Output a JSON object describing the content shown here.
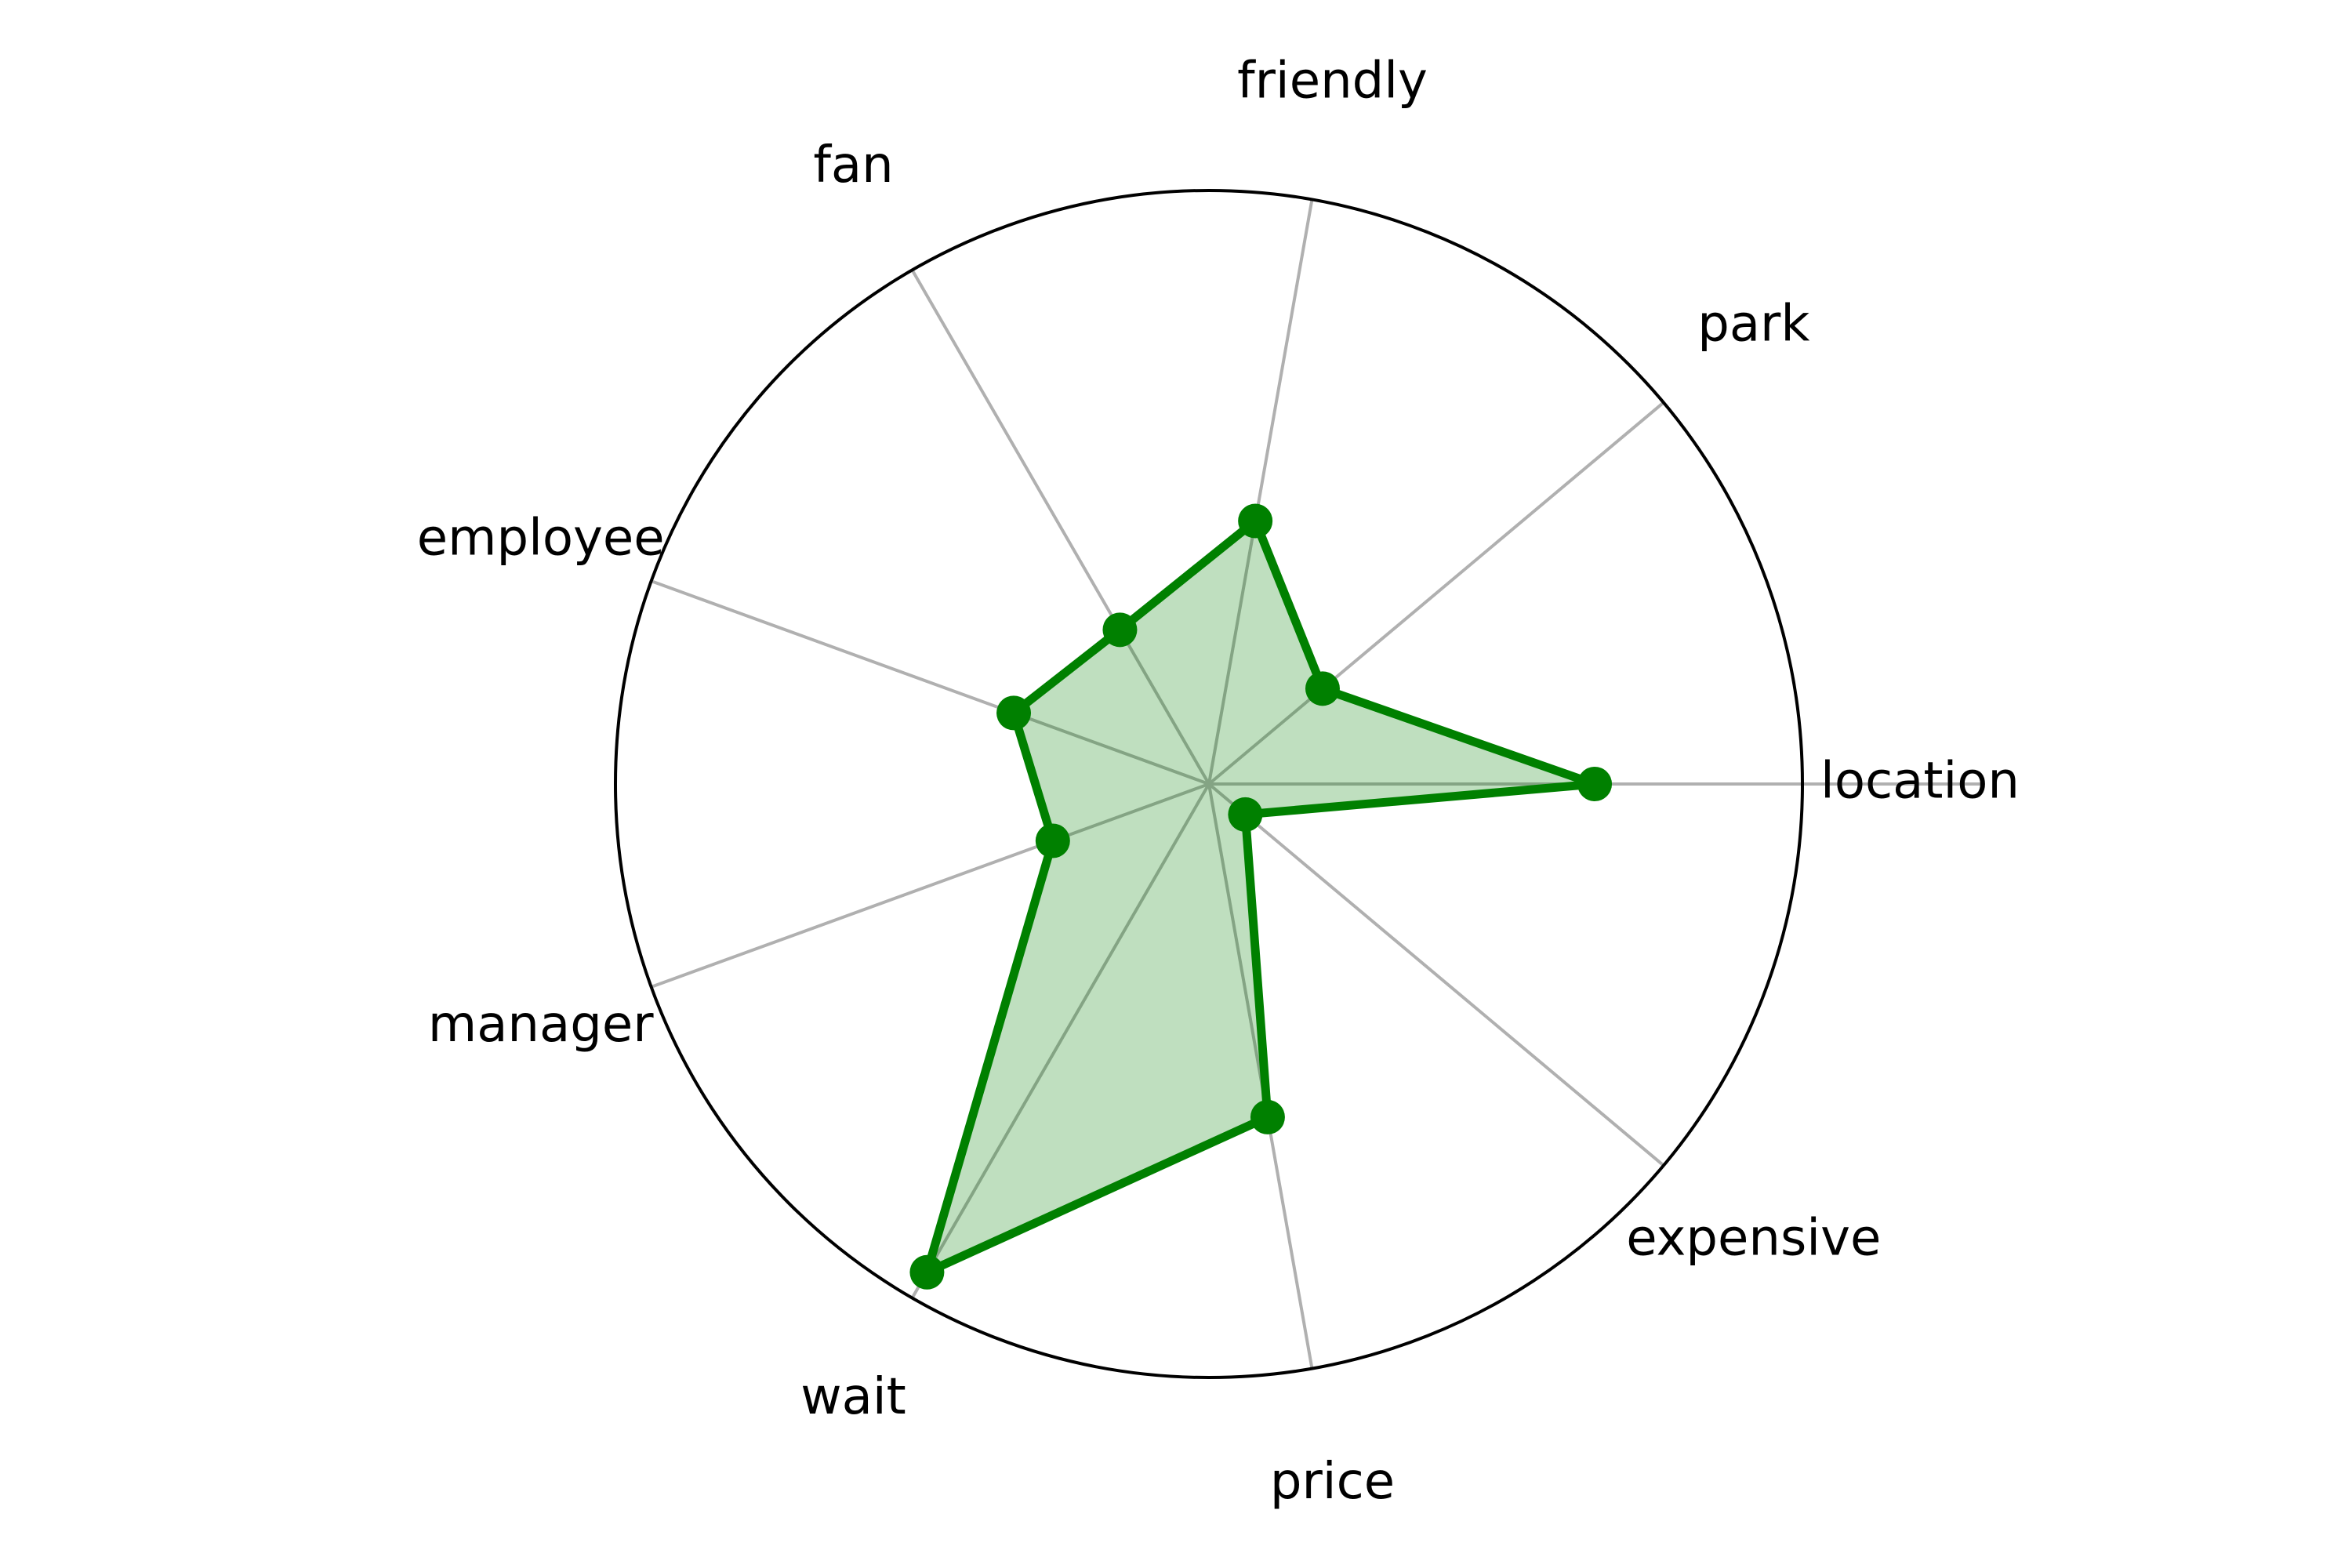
{
  "chart_data": {
    "type": "radar",
    "categories": [
      "location",
      "park",
      "friendly",
      "fan",
      "employee",
      "manager",
      "wait",
      "price",
      "expensive"
    ],
    "series": [
      {
        "values": [
          0.65,
          0.25,
          0.45,
          0.3,
          0.35,
          0.28,
          0.95,
          0.57,
          0.08
        ]
      }
    ],
    "rlim": [
      0,
      1
    ],
    "grid": true,
    "colors": {
      "line": "#008000",
      "fill": "#008000",
      "fill_opacity": 0.25,
      "spokes": "#b0b0b0",
      "outer_ring": "#000000"
    }
  }
}
